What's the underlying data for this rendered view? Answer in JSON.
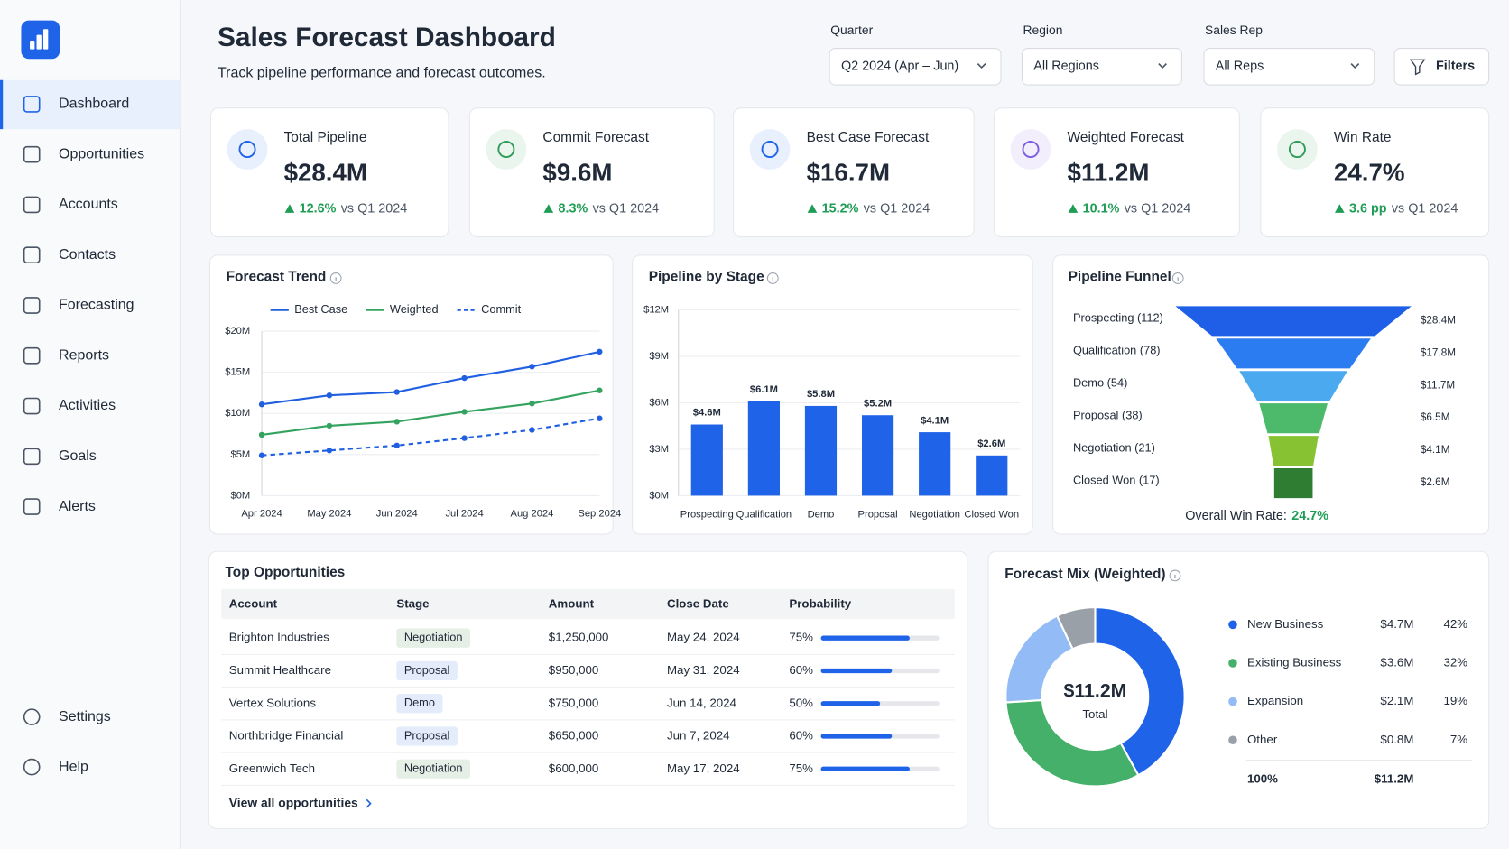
{
  "sidebar": {
    "nav": [
      "Dashboard",
      "Opportunities",
      "Accounts",
      "Contacts",
      "Forecasting",
      "Reports",
      "Activities",
      "Goals",
      "Alerts"
    ],
    "footer": [
      "Settings",
      "Help"
    ]
  },
  "header": {
    "title": "Sales Forecast Dashboard",
    "subtitle": "Track pipeline performance and forecast outcomes."
  },
  "filters": [
    {
      "label": "Quarter",
      "value": "Q2 2024 (Apr – Jun)"
    },
    {
      "label": "Region",
      "value": "All Regions"
    },
    {
      "label": "Sales Rep",
      "value": "All Reps"
    }
  ],
  "filters_button": "Filters",
  "kpis": [
    {
      "title": "Total Pipeline",
      "value": "$28.4M",
      "change": "12.6%",
      "comparison": "vs Q1 2024",
      "color": "#1f63e9"
    },
    {
      "title": "Commit Forecast",
      "value": "$9.6M",
      "change": "8.3%",
      "comparison": "vs Q1 2024",
      "color": "#2e9b57"
    },
    {
      "title": "Best Case Forecast",
      "value": "$16.7M",
      "change": "15.2%",
      "comparison": "vs Q1 2024",
      "color": "#1f63e9"
    },
    {
      "title": "Weighted Forecast",
      "value": "$11.2M",
      "change": "10.1%",
      "comparison": "vs Q1 2024",
      "color": "#7c5ce0"
    },
    {
      "title": "Win Rate",
      "value": "24.7%",
      "change": "3.6 pp",
      "comparison": "vs Q1 2024",
      "color": "#2e9b57"
    }
  ],
  "forecast_trend": {
    "type": "line",
    "title": "Forecast Trend",
    "categories": [
      "Apr 2024",
      "May 2024",
      "Jun 2024",
      "Jul 2024",
      "Aug 2024",
      "Sep 2024"
    ],
    "series": [
      {
        "name": "Best Case",
        "color": "#1f5fe0",
        "dashed": false,
        "values": [
          11.1,
          12.2,
          12.6,
          14.3,
          15.7,
          17.5
        ]
      },
      {
        "name": "Weighted",
        "color": "#34a35f",
        "dashed": false,
        "values": [
          7.4,
          8.5,
          9.0,
          10.2,
          11.2,
          12.8
        ]
      },
      {
        "name": "Commit",
        "color": "#1f5fe0",
        "dashed": true,
        "values": [
          4.9,
          5.5,
          6.1,
          7.0,
          8.0,
          9.4
        ]
      }
    ],
    "ylim": [
      0,
      20
    ],
    "yticks": [
      {
        "value": 0,
        "label": "$0M"
      },
      {
        "value": 5,
        "label": "$5M"
      },
      {
        "value": 10,
        "label": "$10M"
      },
      {
        "value": 15,
        "label": "$15M"
      },
      {
        "value": 20,
        "label": "$20M"
      }
    ],
    "grid": true
  },
  "pipeline_by_stage": {
    "type": "bar",
    "title": "Pipeline by Stage",
    "categories": [
      "Prospecting",
      "Qualification",
      "Demo",
      "Proposal",
      "Negotiation",
      "Closed Won"
    ],
    "values": [
      4.6,
      6.1,
      5.8,
      5.2,
      4.1,
      2.6
    ],
    "value_labels": [
      "$4.6M",
      "$6.1M",
      "$5.8M",
      "$5.2M",
      "$4.1M",
      "$2.6M"
    ],
    "color": "#1f63e9",
    "ylim": [
      0,
      12
    ],
    "yticks": [
      {
        "value": 0,
        "label": "$0M"
      },
      {
        "value": 3,
        "label": "$3M"
      },
      {
        "value": 6,
        "label": "$6M"
      },
      {
        "value": 9,
        "label": "$9M"
      },
      {
        "value": 12,
        "label": "$12M"
      }
    ],
    "grid": true
  },
  "pipeline_funnel": {
    "type": "funnel",
    "title": "Pipeline Funnel",
    "stages": [
      "Prospecting (112)",
      "Qualification (78)",
      "Demo (54)",
      "Proposal (38)",
      "Negotiation (21)",
      "Closed Won (17)"
    ],
    "values": [
      28.4,
      17.8,
      11.7,
      6.5,
      4.1,
      2.6
    ],
    "value_labels": [
      "$28.4M",
      "$17.8M",
      "$11.7M",
      "$6.5M",
      "$4.1M",
      "$2.6M"
    ],
    "colors": [
      "#1f5fe8",
      "#2b7cf0",
      "#4ba9f0",
      "#4cba6a",
      "#86c232",
      "#2e7d32"
    ],
    "win_rate_label": "Overall Win Rate:",
    "win_rate": "24.7%"
  },
  "top_opportunities": {
    "title": "Top Opportunities",
    "columns": [
      "Account",
      "Stage",
      "Amount",
      "Close Date",
      "Probability"
    ],
    "rows": [
      {
        "account": "Brighton Industries",
        "stage": "Negotiation",
        "stage_color": "#2e7d32",
        "amount": "$1,250,000",
        "close_date": "May 24, 2024",
        "probability": 75,
        "probability_label": "75%"
      },
      {
        "account": "Summit Healthcare",
        "stage": "Proposal",
        "stage_color": "#1f5fe0",
        "amount": "$950,000",
        "close_date": "May 31, 2024",
        "probability": 60,
        "probability_label": "60%"
      },
      {
        "account": "Vertex Solutions",
        "stage": "Demo",
        "stage_color": "#1f5fe0",
        "amount": "$750,000",
        "close_date": "Jun 14, 2024",
        "probability": 50,
        "probability_label": "50%"
      },
      {
        "account": "Northbridge Financial",
        "stage": "Proposal",
        "stage_color": "#1f5fe0",
        "amount": "$650,000",
        "close_date": "Jun 7, 2024",
        "probability": 60,
        "probability_label": "60%"
      },
      {
        "account": "Greenwich Tech",
        "stage": "Negotiation",
        "stage_color": "#2e7d32",
        "amount": "$600,000",
        "close_date": "May 17, 2024",
        "probability": 75,
        "probability_label": "75%"
      }
    ],
    "link": "View all opportunities"
  },
  "forecast_mix": {
    "type": "donut",
    "title": "Forecast Mix (Weighted)",
    "center_value": "$11.2M",
    "center_label": "Total",
    "series": [
      {
        "name": "New Business",
        "color": "#1f63e9",
        "value": 42,
        "value_label": "42%",
        "amount": "$4.7M"
      },
      {
        "name": "Existing Business",
        "color": "#45b06a",
        "value": 32,
        "value_label": "32%",
        "amount": "$3.6M"
      },
      {
        "name": "Expansion",
        "color": "#93bcf6",
        "value": 19,
        "value_label": "19%",
        "amount": "$2.1M"
      },
      {
        "name": "Other",
        "color": "#9aa0a8",
        "value": 7,
        "value_label": "7%",
        "amount": "$0.8M"
      }
    ],
    "total_percent": "100%",
    "total_amount": "$11.2M"
  }
}
